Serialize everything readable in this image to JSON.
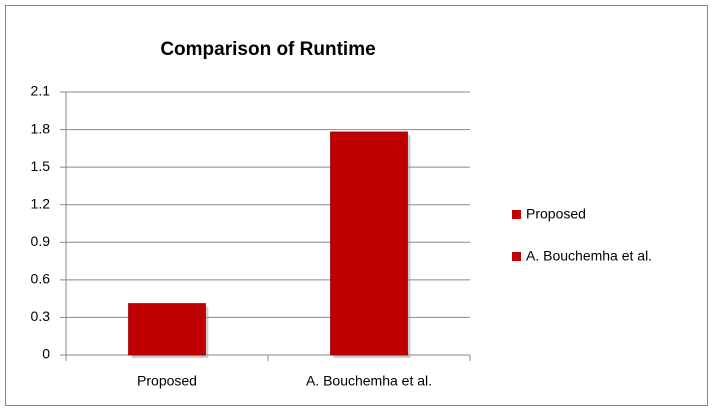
{
  "chart_data": {
    "type": "bar",
    "title": "Comparison of Runtime",
    "categories": [
      "Proposed",
      "A. Bouchemha et al."
    ],
    "values": [
      0.41,
      1.78
    ],
    "color": "#c00000",
    "ylim": [
      0,
      2.1
    ],
    "yticks": [
      0,
      0.3,
      0.6,
      0.9,
      1.2,
      1.5,
      1.8,
      2.1
    ],
    "grid": true,
    "legend": "right"
  }
}
